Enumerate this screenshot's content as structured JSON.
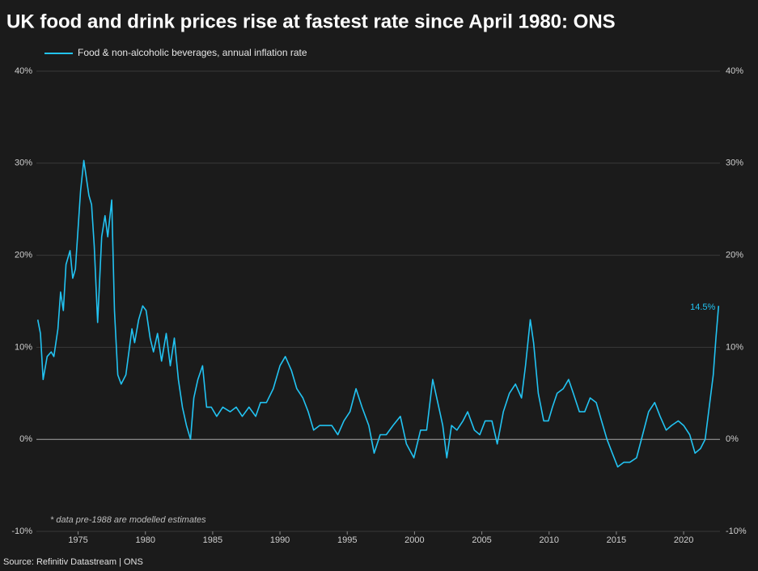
{
  "chart_data": {
    "type": "line",
    "title": "UK food and drink prices rise at fastest rate since April 1980: ONS",
    "note": "* data pre-1988 are modelled estimates",
    "source": "Source: Refinitiv Datastream | ONS",
    "x": [
      1972.0,
      1972.2,
      1972.4,
      1972.7,
      1973.0,
      1973.2,
      1973.5,
      1973.7,
      1973.9,
      1974.1,
      1974.4,
      1974.6,
      1974.8,
      1975.18,
      1975.42,
      1975.8,
      1976.0,
      1976.2,
      1976.45,
      1976.75,
      1977.0,
      1977.2,
      1977.5,
      1977.7,
      1977.95,
      1978.2,
      1978.55,
      1979.0,
      1979.2,
      1979.5,
      1979.8,
      1980.05,
      1980.35,
      1980.6,
      1980.9,
      1981.2,
      1981.55,
      1981.85,
      1982.15,
      1982.45,
      1982.75,
      1983.05,
      1983.35,
      1983.6,
      1983.9,
      1984.25,
      1984.55,
      1984.9,
      1985.3,
      1985.75,
      1986.3,
      1986.75,
      1987.2,
      1987.7,
      1988.2,
      1988.55,
      1989.0,
      1989.5,
      1990.0,
      1990.4,
      1990.85,
      1991.25,
      1991.7,
      1992.1,
      1992.5,
      1992.95,
      1993.35,
      1993.85,
      1994.3,
      1994.75,
      1995.2,
      1995.65,
      1996.1,
      1996.6,
      1997.0,
      1997.45,
      1997.9,
      1998.4,
      1998.95,
      1999.4,
      1999.95,
      2000.45,
      2000.9,
      2001.35,
      2001.8,
      2002.1,
      2002.4,
      2002.75,
      2003.15,
      2003.6,
      2003.95,
      2004.45,
      2004.85,
      2005.25,
      2005.75,
      2006.15,
      2006.6,
      2007.05,
      2007.5,
      2007.95,
      2008.25,
      2008.6,
      2008.85,
      2009.2,
      2009.6,
      2009.95,
      2010.25,
      2010.6,
      2011.05,
      2011.45,
      2011.8,
      2012.25,
      2012.65,
      2013.05,
      2013.5,
      2013.9,
      2014.3,
      2014.7,
      2015.1,
      2015.55,
      2016.0,
      2016.5,
      2016.95,
      2017.4,
      2017.85,
      2018.25,
      2018.7,
      2019.1,
      2019.6,
      2020.0,
      2020.45,
      2020.85,
      2021.25,
      2021.6,
      2021.9,
      2022.2,
      2022.4,
      2022.6
    ],
    "series": [
      {
        "name": "Food & non-alcoholic beverages, annual inflation rate",
        "color": "#22c3f2",
        "values": [
          13,
          11.5,
          6.5,
          9,
          9.5,
          9,
          12,
          16,
          14,
          19,
          20.5,
          17.5,
          18.5,
          27,
          30.3,
          26.5,
          25.5,
          21,
          12.7,
          22,
          24.3,
          22,
          26,
          14,
          7,
          6,
          7,
          12,
          10.5,
          13,
          14.5,
          14,
          11,
          9.5,
          11.5,
          8.5,
          11.5,
          8,
          11,
          6.5,
          3.5,
          1.5,
          0,
          4.5,
          6.5,
          8,
          3.5,
          3.5,
          2.5,
          3.5,
          3,
          3.5,
          2.5,
          3.5,
          2.5,
          4,
          4,
          5.5,
          8,
          9,
          7.5,
          5.5,
          4.5,
          3,
          1,
          1.5,
          1.5,
          1.5,
          0.5,
          2,
          3,
          5.5,
          3.5,
          1.5,
          -1.5,
          0.5,
          0.5,
          1.5,
          2.5,
          -0.5,
          -2,
          1,
          1,
          6.5,
          3.5,
          1.5,
          -2,
          1.5,
          1,
          2,
          3,
          1,
          0.5,
          2,
          2,
          -0.5,
          3,
          5,
          6,
          4.5,
          8,
          13,
          10.5,
          5,
          2,
          2,
          3.5,
          5,
          5.5,
          6.5,
          5,
          3,
          3,
          4.5,
          4,
          2,
          0,
          -1.5,
          -3,
          -2.5,
          -2.5,
          -2,
          0.5,
          3,
          4,
          2.5,
          1,
          1.5,
          2,
          1.5,
          0.5,
          -1.5,
          -1,
          0,
          3.5,
          7,
          11,
          14.5
        ]
      }
    ],
    "annotations": [
      {
        "text": "14.5%",
        "x": 2022.6,
        "y": 14.5
      }
    ],
    "xlim": [
      1971.9,
      2022.7
    ],
    "xticks": [
      1975,
      1980,
      1985,
      1990,
      1995,
      2000,
      2005,
      2010,
      2015,
      2020
    ],
    "ylim": [
      -10,
      40
    ],
    "yticks": [
      {
        "value": -10,
        "label": "-10%"
      },
      {
        "value": 0,
        "label": "0%"
      },
      {
        "value": 10,
        "label": "10%"
      },
      {
        "value": 20,
        "label": "20%"
      },
      {
        "value": 30,
        "label": "30%"
      },
      {
        "value": 40,
        "label": "40%"
      }
    ],
    "grid": true,
    "legend": "top-left"
  }
}
